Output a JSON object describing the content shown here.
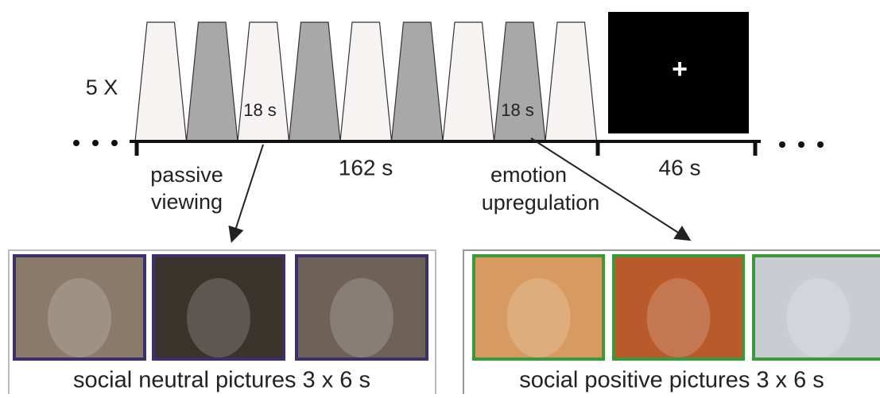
{
  "timeline": {
    "repeat": "5 X",
    "block_duration_labels": [
      "18 s",
      "18 s"
    ],
    "run_duration": "162 s",
    "rest_duration": "46 s",
    "fixation": "+"
  },
  "conditions": [
    {
      "label_lines": [
        "passive",
        "viewing"
      ],
      "caption": "social neutral pictures 3 x 6 s"
    },
    {
      "label_lines": [
        "emotion",
        "upregulation"
      ],
      "caption": "social positive pictures 3 x 6 s"
    }
  ]
}
